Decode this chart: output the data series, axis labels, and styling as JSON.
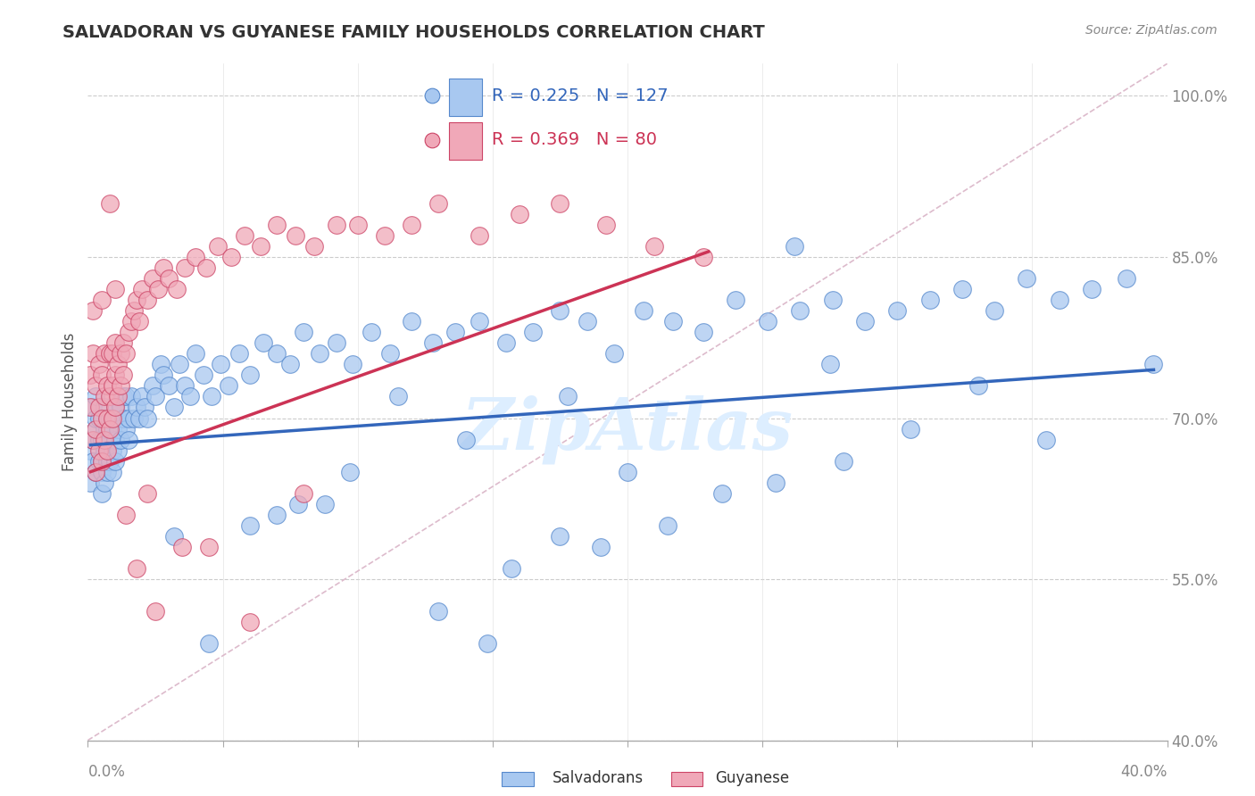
{
  "title": "SALVADORAN VS GUYANESE FAMILY HOUSEHOLDS CORRELATION CHART",
  "source_text": "Source: ZipAtlas.com",
  "ylabel": "Family Households",
  "xlim": [
    0.0,
    0.4
  ],
  "ylim": [
    0.4,
    1.03
  ],
  "ytick_labels": [
    "40.0%",
    "55.0%",
    "70.0%",
    "85.0%",
    "100.0%"
  ],
  "ytick_values": [
    0.4,
    0.55,
    0.7,
    0.85,
    1.0
  ],
  "xtick_values": [
    0.0,
    0.05,
    0.1,
    0.15,
    0.2,
    0.25,
    0.3,
    0.35,
    0.4
  ],
  "legend_r_salvadoran": "0.225",
  "legend_n_salvadoran": "127",
  "legend_r_guyanese": "0.369",
  "legend_n_guyanese": "80",
  "color_salvadoran": "#A8C8F0",
  "color_guyanese": "#F0A8B8",
  "edge_color_salvadoran": "#5588CC",
  "edge_color_guyanese": "#CC4466",
  "line_color_salvadoran": "#3366BB",
  "line_color_guyanese": "#CC3355",
  "diagonal_color": "#CCCCCC",
  "grid_color": "#CCCCCC",
  "title_color": "#333333",
  "source_color": "#888888",
  "watermark_color": "#DDEEFF",
  "background_color": "#FFFFFF",
  "sal_line_x": [
    0.001,
    0.395
  ],
  "sal_line_y": [
    0.675,
    0.745
  ],
  "guy_line_x": [
    0.001,
    0.23
  ],
  "guy_line_y": [
    0.65,
    0.855
  ],
  "salvadoran_x": [
    0.001,
    0.001,
    0.002,
    0.002,
    0.002,
    0.003,
    0.003,
    0.003,
    0.003,
    0.004,
    0.004,
    0.004,
    0.005,
    0.005,
    0.005,
    0.005,
    0.006,
    0.006,
    0.006,
    0.006,
    0.007,
    0.007,
    0.007,
    0.007,
    0.008,
    0.008,
    0.008,
    0.009,
    0.009,
    0.009,
    0.01,
    0.01,
    0.01,
    0.01,
    0.011,
    0.011,
    0.012,
    0.012,
    0.013,
    0.013,
    0.014,
    0.014,
    0.015,
    0.015,
    0.016,
    0.017,
    0.018,
    0.019,
    0.02,
    0.021,
    0.022,
    0.024,
    0.025,
    0.027,
    0.028,
    0.03,
    0.032,
    0.034,
    0.036,
    0.038,
    0.04,
    0.043,
    0.046,
    0.049,
    0.052,
    0.056,
    0.06,
    0.065,
    0.07,
    0.075,
    0.08,
    0.086,
    0.092,
    0.098,
    0.105,
    0.112,
    0.12,
    0.128,
    0.136,
    0.145,
    0.155,
    0.165,
    0.175,
    0.185,
    0.195,
    0.206,
    0.217,
    0.228,
    0.24,
    0.252,
    0.264,
    0.276,
    0.288,
    0.3,
    0.312,
    0.324,
    0.336,
    0.348,
    0.36,
    0.372,
    0.385,
    0.115,
    0.13,
    0.148,
    0.088,
    0.07,
    0.2,
    0.215,
    0.175,
    0.235,
    0.19,
    0.06,
    0.045,
    0.28,
    0.255,
    0.305,
    0.33,
    0.355,
    0.262,
    0.178,
    0.14,
    0.097,
    0.078,
    0.032,
    0.157,
    0.395,
    0.275
  ],
  "salvadoran_y": [
    0.67,
    0.64,
    0.68,
    0.66,
    0.71,
    0.69,
    0.65,
    0.7,
    0.72,
    0.66,
    0.68,
    0.7,
    0.63,
    0.66,
    0.68,
    0.65,
    0.67,
    0.64,
    0.69,
    0.71,
    0.65,
    0.67,
    0.69,
    0.66,
    0.68,
    0.7,
    0.66,
    0.69,
    0.67,
    0.65,
    0.68,
    0.66,
    0.7,
    0.71,
    0.69,
    0.67,
    0.71,
    0.68,
    0.7,
    0.72,
    0.69,
    0.72,
    0.68,
    0.7,
    0.72,
    0.7,
    0.71,
    0.7,
    0.72,
    0.71,
    0.7,
    0.73,
    0.72,
    0.75,
    0.74,
    0.73,
    0.71,
    0.75,
    0.73,
    0.72,
    0.76,
    0.74,
    0.72,
    0.75,
    0.73,
    0.76,
    0.74,
    0.77,
    0.76,
    0.75,
    0.78,
    0.76,
    0.77,
    0.75,
    0.78,
    0.76,
    0.79,
    0.77,
    0.78,
    0.79,
    0.77,
    0.78,
    0.8,
    0.79,
    0.76,
    0.8,
    0.79,
    0.78,
    0.81,
    0.79,
    0.8,
    0.81,
    0.79,
    0.8,
    0.81,
    0.82,
    0.8,
    0.83,
    0.81,
    0.82,
    0.83,
    0.72,
    0.52,
    0.49,
    0.62,
    0.61,
    0.65,
    0.6,
    0.59,
    0.63,
    0.58,
    0.6,
    0.49,
    0.66,
    0.64,
    0.69,
    0.73,
    0.68,
    0.86,
    0.72,
    0.68,
    0.65,
    0.62,
    0.59,
    0.56,
    0.75,
    0.75
  ],
  "guyanese_x": [
    0.001,
    0.001,
    0.002,
    0.002,
    0.002,
    0.003,
    0.003,
    0.003,
    0.004,
    0.004,
    0.004,
    0.005,
    0.005,
    0.005,
    0.006,
    0.006,
    0.006,
    0.007,
    0.007,
    0.007,
    0.008,
    0.008,
    0.008,
    0.009,
    0.009,
    0.009,
    0.01,
    0.01,
    0.01,
    0.011,
    0.011,
    0.012,
    0.012,
    0.013,
    0.013,
    0.014,
    0.015,
    0.016,
    0.017,
    0.018,
    0.019,
    0.02,
    0.022,
    0.024,
    0.026,
    0.028,
    0.03,
    0.033,
    0.036,
    0.04,
    0.044,
    0.048,
    0.053,
    0.058,
    0.064,
    0.07,
    0.077,
    0.084,
    0.092,
    0.1,
    0.11,
    0.12,
    0.13,
    0.145,
    0.16,
    0.175,
    0.192,
    0.21,
    0.228,
    0.005,
    0.008,
    0.01,
    0.014,
    0.018,
    0.022,
    0.025,
    0.035,
    0.045,
    0.06,
    0.08
  ],
  "guyanese_y": [
    0.71,
    0.74,
    0.68,
    0.76,
    0.8,
    0.65,
    0.69,
    0.73,
    0.67,
    0.71,
    0.75,
    0.66,
    0.7,
    0.74,
    0.68,
    0.72,
    0.76,
    0.67,
    0.7,
    0.73,
    0.69,
    0.72,
    0.76,
    0.7,
    0.73,
    0.76,
    0.71,
    0.74,
    0.77,
    0.72,
    0.75,
    0.73,
    0.76,
    0.74,
    0.77,
    0.76,
    0.78,
    0.79,
    0.8,
    0.81,
    0.79,
    0.82,
    0.81,
    0.83,
    0.82,
    0.84,
    0.83,
    0.82,
    0.84,
    0.85,
    0.84,
    0.86,
    0.85,
    0.87,
    0.86,
    0.88,
    0.87,
    0.86,
    0.88,
    0.88,
    0.87,
    0.88,
    0.9,
    0.87,
    0.89,
    0.9,
    0.88,
    0.86,
    0.85,
    0.81,
    0.9,
    0.82,
    0.61,
    0.56,
    0.63,
    0.52,
    0.58,
    0.58,
    0.51,
    0.63
  ]
}
